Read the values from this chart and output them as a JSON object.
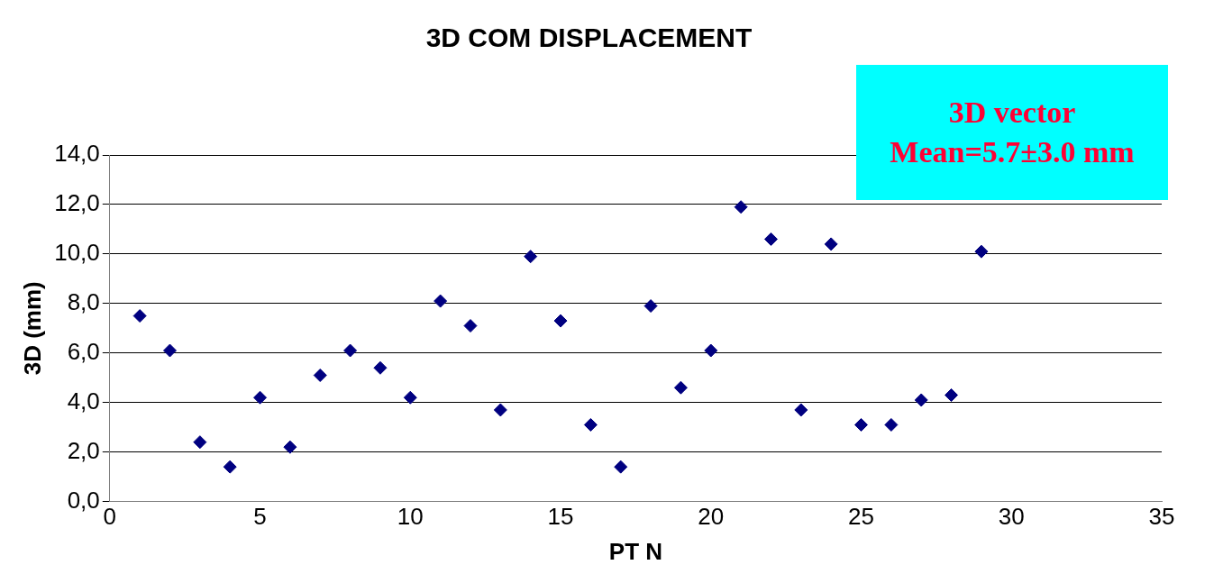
{
  "chart_data": {
    "type": "scatter",
    "title": "3D COM DISPLACEMENT",
    "xlabel": "PT N",
    "ylabel": "3D (mm)",
    "annotations": [
      "3D vector",
      "Mean=5.7±3.0 mm"
    ],
    "x": [
      1,
      2,
      3,
      4,
      5,
      6,
      7,
      8,
      9,
      10,
      11,
      12,
      13,
      14,
      15,
      16,
      17,
      18,
      19,
      20,
      21,
      22,
      23,
      24,
      25,
      26,
      27,
      28,
      29
    ],
    "series": [
      {
        "color": "#000080",
        "values": [
          7.5,
          6.1,
          2.4,
          1.4,
          4.2,
          2.2,
          5.1,
          6.1,
          5.4,
          4.2,
          8.1,
          7.1,
          3.7,
          9.9,
          7.3,
          3.1,
          1.4,
          7.9,
          4.6,
          6.1,
          11.9,
          10.6,
          3.7,
          10.4,
          3.1,
          3.1,
          4.1,
          4.3,
          10.1
        ]
      }
    ],
    "xlim": [
      0,
      35
    ],
    "xticks": [
      0,
      5,
      10,
      15,
      20,
      25,
      30,
      35
    ],
    "ylim": [
      0,
      14
    ],
    "yticks": [
      {
        "value": 0,
        "label": "0,0"
      },
      {
        "value": 2,
        "label": "2,0"
      },
      {
        "value": 4,
        "label": "4,0"
      },
      {
        "value": 6,
        "label": "6,0"
      },
      {
        "value": 8,
        "label": "8,0"
      },
      {
        "value": 10,
        "label": "10,0"
      },
      {
        "value": 12,
        "label": "12,0"
      },
      {
        "value": 14,
        "label": "14,0"
      }
    ],
    "grid": "y",
    "legend": false,
    "marker": "diamond"
  }
}
